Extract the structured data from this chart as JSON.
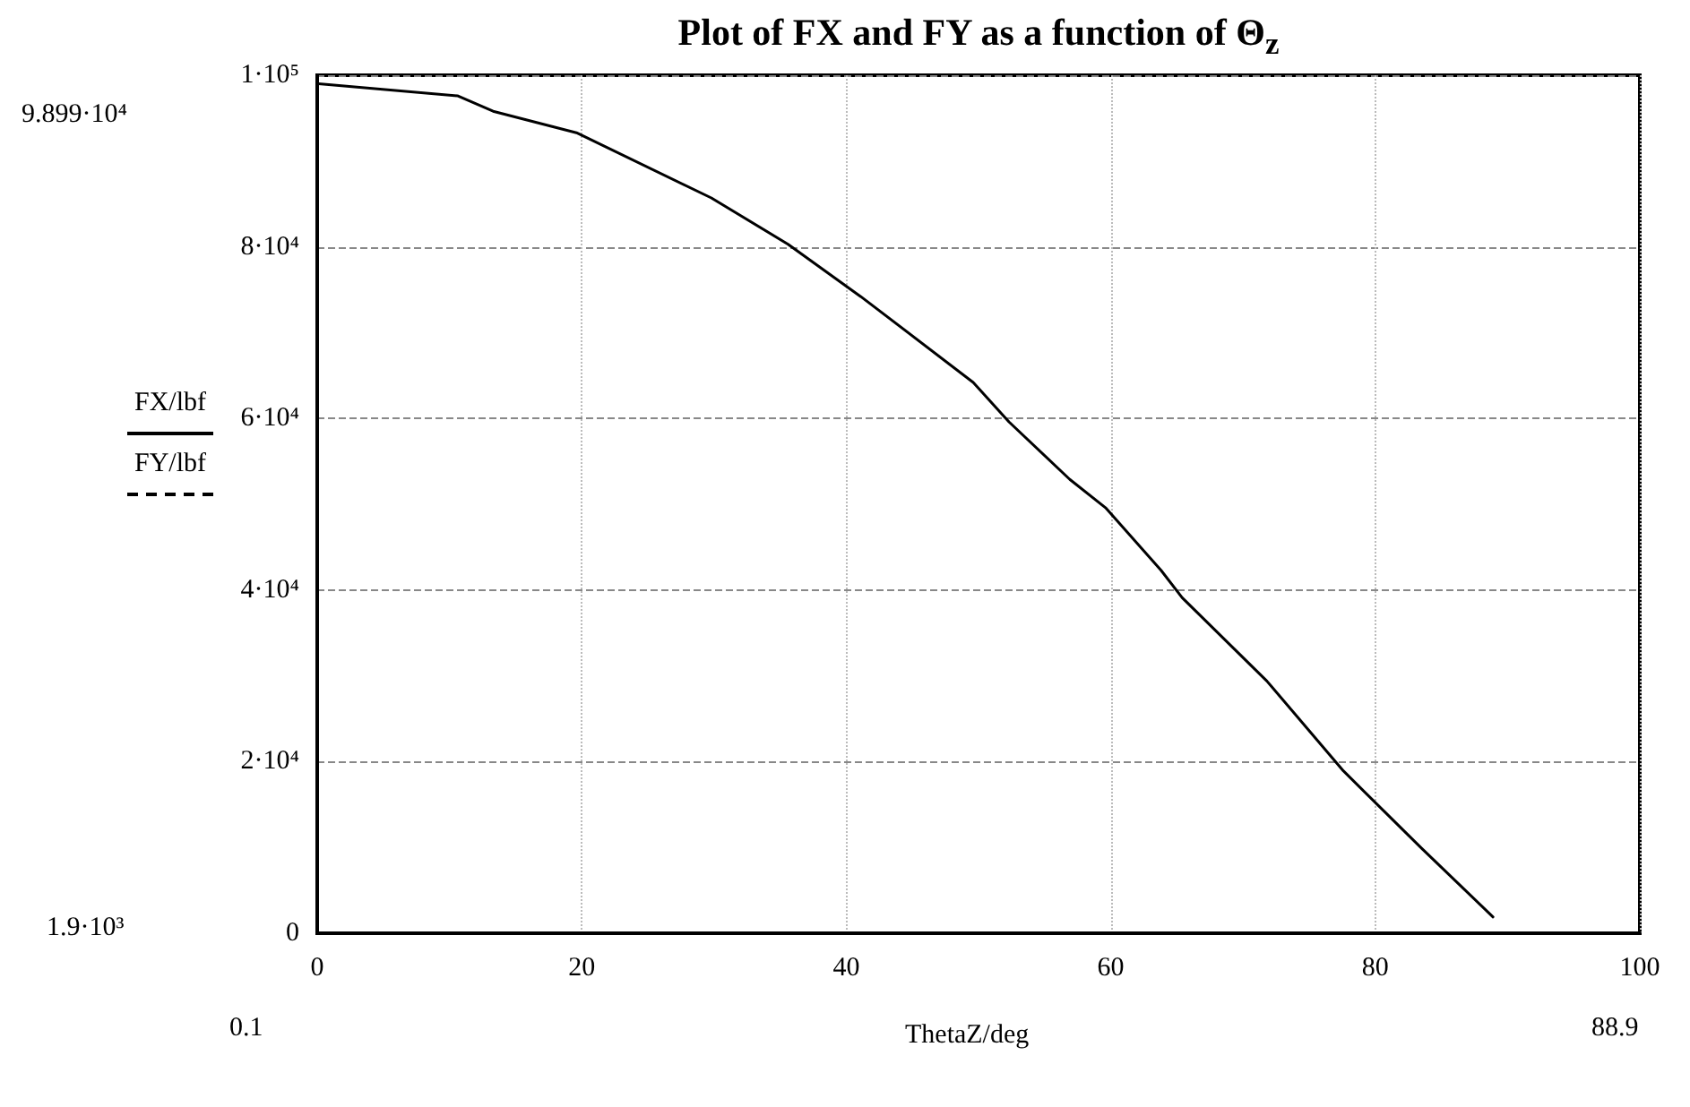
{
  "chart_data": {
    "type": "line",
    "title": "Plot of FX and FY as a function of Θ$_{z}$",
    "xlabel": "ThetaZ/deg",
    "x": [
      0.1,
      10.6,
      13.3,
      19.6,
      29.8,
      35.6,
      41.1,
      49.6,
      52.3,
      56.9,
      59.6,
      63.8,
      65.4,
      71.8,
      77.6,
      83.5,
      88.9
    ],
    "series": [
      {
        "name": "FX/lbf",
        "color": "#000000",
        "line_style": "solid",
        "values": [
          99000,
          97600,
          95800,
          93300,
          85700,
          80300,
          74200,
          64200,
          59600,
          52900,
          49600,
          42300,
          39100,
          29400,
          18900,
          9900,
          1900
        ]
      },
      {
        "name": "FY/lbf",
        "color": "#000000",
        "line_style": "dashed",
        "values": [
          null,
          null,
          null,
          null,
          null,
          null,
          null,
          null,
          null,
          null,
          null,
          null,
          null,
          null,
          null,
          null,
          null
        ]
      }
    ],
    "xlim": [
      0,
      100
    ],
    "xticks": [
      0,
      20,
      40,
      60,
      80,
      100
    ],
    "ylim": [
      0,
      100000
    ],
    "yticks": [
      0,
      {
        "value": 20000,
        "label": "2·10⁴"
      },
      {
        "value": 40000,
        "label": "4·10⁴"
      },
      {
        "value": 60000,
        "label": "6·10⁴"
      },
      {
        "value": 80000,
        "label": "8·10⁴"
      },
      {
        "value": 100000,
        "label": "1·10⁵"
      }
    ],
    "grid": true,
    "marker": "none",
    "annotations": [
      "9.899·10⁴",
      "1.9·10³",
      "0.1",
      "88.9"
    ]
  }
}
